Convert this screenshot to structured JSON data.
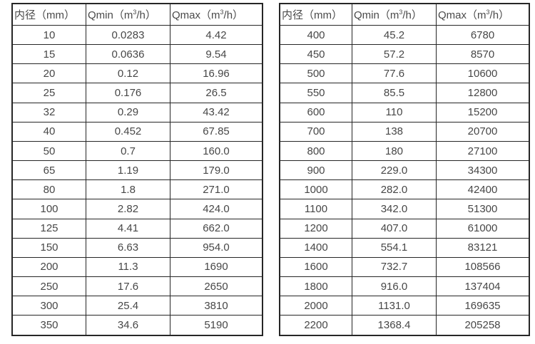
{
  "page": {
    "background_color": "#ffffff",
    "border_color": "#262626",
    "text_color": "#474747"
  },
  "tables": [
    {
      "title": "flow-table-small-diameters",
      "headers": {
        "diameter": "内径（mm）",
        "qmin_prefix": "Qmin（m",
        "qmin_sup": "3",
        "qmin_suffix": "/h）",
        "qmax_prefix": "Qmax（m",
        "qmax_sup": "3",
        "qmax_suffix": "/h）"
      },
      "rows": [
        [
          "10",
          "0.0283",
          "4.42"
        ],
        [
          "15",
          "0.0636",
          "9.54"
        ],
        [
          "20",
          "0.12",
          "16.96"
        ],
        [
          "25",
          "0.176",
          "26.5"
        ],
        [
          "32",
          "0.29",
          "43.42"
        ],
        [
          "40",
          "0.452",
          "67.85"
        ],
        [
          "50",
          "0.7",
          "160.0"
        ],
        [
          "65",
          "1.19",
          "179.0"
        ],
        [
          "80",
          "1.8",
          "271.0"
        ],
        [
          "100",
          "2.82",
          "424.0"
        ],
        [
          "125",
          "4.41",
          "662.0"
        ],
        [
          "150",
          "6.63",
          "954.0"
        ],
        [
          "200",
          "11.3",
          "1690"
        ],
        [
          "250",
          "17.6",
          "2650"
        ],
        [
          "300",
          "25.4",
          "3810"
        ],
        [
          "350",
          "34.6",
          "5190"
        ]
      ]
    },
    {
      "title": "flow-table-large-diameters",
      "headers": {
        "diameter": "内径（mm）",
        "qmin_prefix": "Qmin（m",
        "qmin_sup": "3",
        "qmin_suffix": "/h）",
        "qmax_prefix": "Qmax（m",
        "qmax_sup": "3",
        "qmax_suffix": "/h）"
      },
      "rows": [
        [
          "400",
          "45.2",
          "6780"
        ],
        [
          "450",
          "57.2",
          "8570"
        ],
        [
          "500",
          "77.6",
          "10600"
        ],
        [
          "550",
          "85.5",
          "12800"
        ],
        [
          "600",
          "110",
          "15200"
        ],
        [
          "700",
          "138",
          "20700"
        ],
        [
          "800",
          "180",
          "27100"
        ],
        [
          "900",
          "229.0",
          "34300"
        ],
        [
          "1000",
          "282.0",
          "42400"
        ],
        [
          "1100",
          "342.0",
          "51300"
        ],
        [
          "1200",
          "407.0",
          "61000"
        ],
        [
          "1400",
          "554.1",
          "83121"
        ],
        [
          "1600",
          "732.7",
          "108566"
        ],
        [
          "1800",
          "916.0",
          "137404"
        ],
        [
          "2000",
          "1131.0",
          "169635"
        ],
        [
          "2200",
          "1368.4",
          "205258"
        ]
      ]
    }
  ]
}
